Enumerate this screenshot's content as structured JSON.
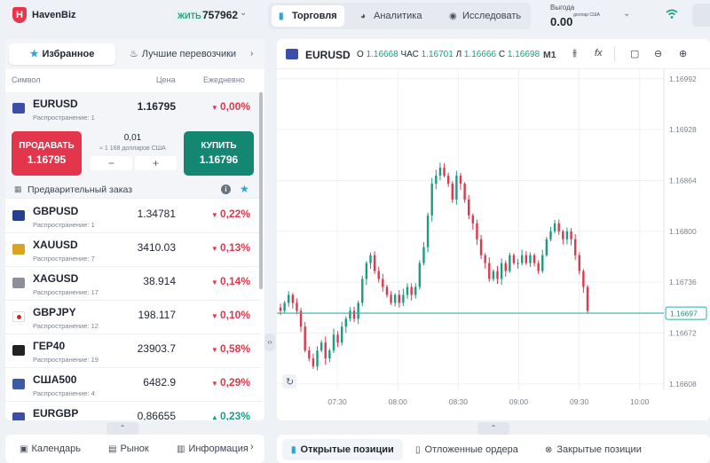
{
  "topbar": {
    "logo_letter": "H",
    "brand": "HavenBiz",
    "account_mode": "ЖИТЬ",
    "account_number": "757962",
    "nav": [
      {
        "label": "Торговля",
        "icon": "bar-chart-icon"
      },
      {
        "label": "Аналитика",
        "icon": "pie-chart-icon"
      },
      {
        "label": "Исследовать",
        "icon": "compass-icon"
      }
    ],
    "profit_label": "Выгода",
    "profit_value": "0.00",
    "profit_currency": "доллар США"
  },
  "left": {
    "tabs": [
      "Избранное",
      "Лучшие перевозчики"
    ],
    "columns": {
      "symbol": "Символ",
      "price": "Цена",
      "daily": "Ежедневно"
    },
    "selected": {
      "symbol": "EURUSD",
      "spread": "Распространение: 1",
      "price": "1.16795",
      "change": "0,00%"
    },
    "trade": {
      "sell_label": "ПРОДАВАТЬ",
      "sell_price": "1.16795",
      "buy_label": "КУПИТЬ",
      "buy_price": "1.16796",
      "qty": "0,01",
      "qty_sub": "≈ 1 168 долларов США",
      "minus": "−",
      "plus": "+"
    },
    "preorder_label": "Предварительный заказ",
    "rows": [
      {
        "symbol": "GBPUSD",
        "spread": "Распространение: 1",
        "price": "1.34781",
        "change": "0,22%",
        "dir": "down",
        "flag": "gb"
      },
      {
        "symbol": "XAUUSD",
        "spread": "Распространение: 7",
        "price": "3410.03",
        "change": "0,13%",
        "dir": "down",
        "flag": "gold"
      },
      {
        "symbol": "XAGUSD",
        "spread": "Распространение: 17",
        "price": "38.914",
        "change": "0,14%",
        "dir": "down",
        "flag": "silver"
      },
      {
        "symbol": "GBPJPY",
        "spread": "Распространение: 12",
        "price": "198.117",
        "change": "0,10%",
        "dir": "down",
        "flag": "jp"
      },
      {
        "symbol": "ГЕР40",
        "spread": "Распространение: 19",
        "price": "23903.7",
        "change": "0,58%",
        "dir": "down",
        "flag": "de"
      },
      {
        "symbol": "США500",
        "spread": "Распространение: 4",
        "price": "6482.9",
        "change": "0,29%",
        "dir": "down",
        "flag": "us"
      },
      {
        "symbol": "EURGBP",
        "spread": "",
        "price": "0,86655",
        "change": "0,23%",
        "dir": "up",
        "flag": "eu"
      }
    ],
    "bottom_tabs": [
      {
        "label": "Календарь",
        "icon": "calendar-icon"
      },
      {
        "label": "Рынок",
        "icon": "market-icon"
      },
      {
        "label": "Информация",
        "icon": "info-icon"
      }
    ]
  },
  "chart": {
    "symbol": "EURUSD",
    "ohlc": {
      "o_label": "О",
      "o": "1.16668",
      "h_label": "ЧАС",
      "h": "1.16701",
      "l_label": "Л",
      "l": "1.16666",
      "c_label": "С",
      "c": "1.16698"
    },
    "timeframe": "M1",
    "current_price_label": "1.16697"
  },
  "chart_data": {
    "type": "candlestick",
    "title": "",
    "xlabel": "",
    "ylabel": "",
    "x_ticks": [
      "07:30",
      "08:00",
      "08:30",
      "09:00",
      "09:30",
      "10:00"
    ],
    "y_ticks": [
      "1.16992",
      "1.16928",
      "1.16864",
      "1.16800",
      "1.16736",
      "1.16672",
      "1.16608"
    ],
    "ylim": [
      1.166,
      1.17004
    ],
    "current_price": 1.16697,
    "x_start": "07:00",
    "x_end": "10:12",
    "closes": [
      1.167,
      1.1671,
      1.1672,
      1.1671,
      1.167,
      1.1668,
      1.1665,
      1.1664,
      1.1663,
      1.1665,
      1.1666,
      1.1664,
      1.1665,
      1.1667,
      1.1666,
      1.1668,
      1.1669,
      1.167,
      1.1669,
      1.1671,
      1.1674,
      1.1676,
      1.1677,
      1.1675,
      1.1674,
      1.1673,
      1.1672,
      1.1671,
      1.1672,
      1.1671,
      1.1672,
      1.1673,
      1.1672,
      1.1673,
      1.1676,
      1.1678,
      1.1682,
      1.1686,
      1.1687,
      1.1688,
      1.1687,
      1.1686,
      1.1684,
      1.1687,
      1.1686,
      1.1684,
      1.1682,
      1.1681,
      1.1679,
      1.1677,
      1.1676,
      1.1674,
      1.1675,
      1.1674,
      1.1676,
      1.1675,
      1.1677,
      1.1676,
      1.1676,
      1.1677,
      1.1676,
      1.1677,
      1.1676,
      1.1675,
      1.1677,
      1.1679,
      1.168,
      1.1681,
      1.168,
      1.1679,
      1.168,
      1.1679,
      1.1677,
      1.1675,
      1.1673,
      1.167
    ]
  },
  "bottom_right": {
    "tabs": [
      {
        "label": "Открытые позиции",
        "icon": "book-icon"
      },
      {
        "label": "Отложенные ордера",
        "icon": "document-icon"
      },
      {
        "label": "Закрытые позиции",
        "icon": "close-circle-icon"
      }
    ]
  }
}
